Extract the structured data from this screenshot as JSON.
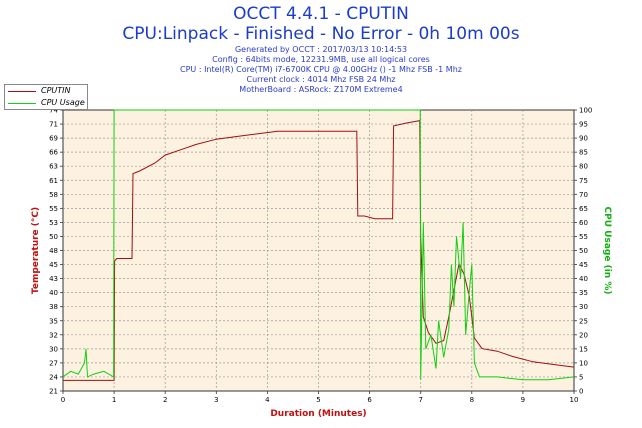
{
  "header": {
    "title": "OCCT 4.4.1 - CPUTIN",
    "subtitle": "CPU:Linpack - Finished - No Error - 0h 10m 00s",
    "info_lines": [
      "Generated by OCCT : 2017/03/13 10:14:53",
      "Config : 64bits mode, 12231.9MB, use all logical cores",
      "CPU : Intel(R) Core(TM) i7-6700K CPU @ 4.00GHz () -1 Mhz FSB -1 Mhz",
      "Current clock : 4014 Mhz FSB 24 Mhz",
      "MotherBoard : ASRock: Z170M Extreme4"
    ]
  },
  "legend": {
    "items": [
      {
        "label": "CPUTIN",
        "color": "#a01010"
      },
      {
        "label": "CPU Usage",
        "color": "#10d010"
      }
    ]
  },
  "chart_data": {
    "type": "line",
    "xlabel": "Duration (Minutes)",
    "ylabel_left": "Temperature (°C)",
    "ylabel_right": "CPU Usage (in %)",
    "xlim": [
      0,
      10
    ],
    "ylim_left": [
      21,
      74
    ],
    "ylim_right": [
      0,
      100
    ],
    "x_ticks": [
      "0",
      "1",
      "2",
      "3",
      "4",
      "5",
      "6",
      "7",
      "8",
      "9",
      "10"
    ],
    "y_left_ticks": [
      "21",
      "24",
      "27",
      "30",
      "32",
      "35",
      "38",
      "40",
      "43",
      "45",
      "48",
      "50",
      "53",
      "55",
      "58",
      "61",
      "63",
      "66",
      "69",
      "71",
      "74"
    ],
    "y_right_ticks": [
      "0",
      "5",
      "10",
      "15",
      "20",
      "25",
      "30",
      "35",
      "40",
      "45",
      "50",
      "55",
      "60",
      "65",
      "70",
      "75",
      "80",
      "85",
      "90",
      "95",
      "100"
    ],
    "grid": true,
    "series": [
      {
        "name": "CPUTIN",
        "axis": "left",
        "color": "#a01010",
        "points": [
          [
            0,
            23
          ],
          [
            0.3,
            23
          ],
          [
            0.6,
            23
          ],
          [
            1.0,
            23
          ],
          [
            1.01,
            45.5
          ],
          [
            1.05,
            46
          ],
          [
            1.35,
            46
          ],
          [
            1.37,
            62
          ],
          [
            1.5,
            62.5
          ],
          [
            1.8,
            64
          ],
          [
            2.0,
            65.5
          ],
          [
            2.3,
            66.5
          ],
          [
            2.6,
            67.5
          ],
          [
            3.0,
            68.5
          ],
          [
            3.4,
            69
          ],
          [
            3.8,
            69.5
          ],
          [
            4.2,
            70
          ],
          [
            4.6,
            70
          ],
          [
            5.0,
            70
          ],
          [
            5.4,
            70
          ],
          [
            5.75,
            70
          ],
          [
            5.77,
            54
          ],
          [
            5.9,
            54
          ],
          [
            6.1,
            53.5
          ],
          [
            6.45,
            53.5
          ],
          [
            6.47,
            71
          ],
          [
            6.7,
            71.5
          ],
          [
            6.98,
            72
          ],
          [
            7.0,
            50
          ],
          [
            7.05,
            35
          ],
          [
            7.15,
            32
          ],
          [
            7.3,
            30
          ],
          [
            7.45,
            30.5
          ],
          [
            7.55,
            35
          ],
          [
            7.65,
            40
          ],
          [
            7.75,
            45
          ],
          [
            7.85,
            43
          ],
          [
            7.95,
            39
          ],
          [
            8.05,
            31
          ],
          [
            8.2,
            29
          ],
          [
            8.5,
            28.5
          ],
          [
            8.8,
            27.5
          ],
          [
            9.2,
            26.5
          ],
          [
            9.6,
            26
          ],
          [
            10.0,
            25.5
          ]
        ]
      },
      {
        "name": "CPU Usage",
        "axis": "right",
        "color": "#10d010",
        "points": [
          [
            0,
            5
          ],
          [
            0.15,
            7
          ],
          [
            0.3,
            6
          ],
          [
            0.42,
            10
          ],
          [
            0.45,
            15
          ],
          [
            0.48,
            5
          ],
          [
            0.6,
            6
          ],
          [
            0.8,
            7
          ],
          [
            0.99,
            5
          ],
          [
            1.0,
            100
          ],
          [
            2,
            100
          ],
          [
            3,
            100
          ],
          [
            4,
            100
          ],
          [
            5,
            100
          ],
          [
            6,
            100
          ],
          [
            6.99,
            100
          ],
          [
            7.0,
            4
          ],
          [
            7.05,
            60
          ],
          [
            7.1,
            15
          ],
          [
            7.2,
            20
          ],
          [
            7.3,
            8
          ],
          [
            7.35,
            25
          ],
          [
            7.45,
            12
          ],
          [
            7.55,
            22
          ],
          [
            7.6,
            45
          ],
          [
            7.65,
            30
          ],
          [
            7.7,
            55
          ],
          [
            7.78,
            40
          ],
          [
            7.83,
            60
          ],
          [
            7.88,
            20
          ],
          [
            7.95,
            35
          ],
          [
            8.0,
            45
          ],
          [
            8.05,
            10
          ],
          [
            8.15,
            5
          ],
          [
            8.5,
            5
          ],
          [
            9.0,
            4
          ],
          [
            9.5,
            4
          ],
          [
            10.0,
            5
          ]
        ]
      }
    ]
  }
}
